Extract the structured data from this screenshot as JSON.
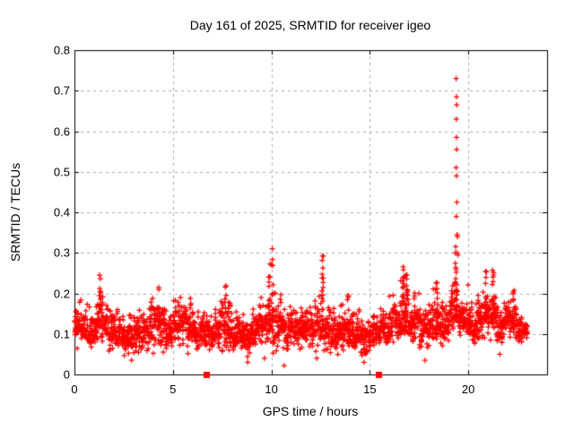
{
  "chart_data": {
    "type": "scatter",
    "title": "Day 161 of 2025, SRMTID for receiver igeo",
    "xlabel": "GPS time / hours",
    "ylabel": "SRMTID / TECUs",
    "xlim": [
      0,
      24
    ],
    "ylim": [
      0,
      0.8
    ],
    "x_tick_values": [
      0,
      5,
      10,
      15,
      20
    ],
    "x_tick_labels": [
      "0",
      "5",
      "10",
      "15",
      "20"
    ],
    "y_tick_values": [
      0,
      0.1,
      0.2,
      0.3,
      0.4,
      0.5,
      0.6,
      0.7,
      0.8
    ],
    "y_tick_labels": [
      "0",
      "0.1",
      "0.2",
      "0.3",
      "0.4",
      "0.5",
      "0.6",
      "0.7",
      "0.8"
    ],
    "grid": true,
    "legend": "none",
    "marker": {
      "shape": "plus",
      "size": 6,
      "color": "#ff0000"
    },
    "colors": {
      "points": "#ff0000",
      "grid": "#a9a9a9",
      "axis": "#000000",
      "text": "#000000",
      "background": "#ffffff"
    },
    "x_data_end": 23.05,
    "bin_width": 0.5,
    "points_per_bin": 56,
    "seed": 161,
    "band_bins": [
      [
        0.0,
        0.06,
        0.19,
        0.12
      ],
      [
        0.5,
        0.04,
        0.18,
        0.1
      ],
      [
        1.0,
        0.06,
        0.23,
        0.13
      ],
      [
        1.5,
        0.05,
        0.21,
        0.12
      ],
      [
        2.0,
        0.05,
        0.18,
        0.1
      ],
      [
        2.5,
        0.035,
        0.16,
        0.09
      ],
      [
        3.0,
        0.05,
        0.18,
        0.1
      ],
      [
        3.5,
        0.04,
        0.19,
        0.11
      ],
      [
        4.0,
        0.05,
        0.21,
        0.12
      ],
      [
        4.5,
        0.05,
        0.18,
        0.1
      ],
      [
        5.0,
        0.06,
        0.2,
        0.12
      ],
      [
        5.5,
        0.05,
        0.2,
        0.12
      ],
      [
        6.0,
        0.04,
        0.18,
        0.1
      ],
      [
        6.5,
        0.05,
        0.17,
        0.1
      ],
      [
        7.0,
        0.05,
        0.19,
        0.11
      ],
      [
        7.5,
        0.04,
        0.21,
        0.11
      ],
      [
        8.0,
        0.05,
        0.18,
        0.1
      ],
      [
        8.5,
        0.03,
        0.17,
        0.09
      ],
      [
        9.0,
        0.05,
        0.19,
        0.11
      ],
      [
        9.5,
        0.05,
        0.22,
        0.12
      ],
      [
        10.0,
        0.04,
        0.22,
        0.12
      ],
      [
        10.5,
        0.04,
        0.18,
        0.1
      ],
      [
        11.0,
        0.05,
        0.19,
        0.11
      ],
      [
        11.5,
        0.06,
        0.21,
        0.12
      ],
      [
        12.0,
        0.05,
        0.22,
        0.12
      ],
      [
        12.5,
        0.05,
        0.23,
        0.12
      ],
      [
        13.0,
        0.04,
        0.18,
        0.1
      ],
      [
        13.5,
        0.05,
        0.19,
        0.11
      ],
      [
        14.0,
        0.04,
        0.18,
        0.1
      ],
      [
        14.5,
        0.035,
        0.16,
        0.09
      ],
      [
        15.0,
        0.05,
        0.18,
        0.1
      ],
      [
        15.5,
        0.05,
        0.19,
        0.11
      ],
      [
        16.0,
        0.06,
        0.21,
        0.12
      ],
      [
        16.5,
        0.07,
        0.24,
        0.14
      ],
      [
        17.0,
        0.06,
        0.22,
        0.13
      ],
      [
        17.5,
        0.04,
        0.2,
        0.11
      ],
      [
        18.0,
        0.06,
        0.22,
        0.12
      ],
      [
        18.5,
        0.06,
        0.2,
        0.11
      ],
      [
        19.0,
        0.08,
        0.26,
        0.15
      ],
      [
        19.5,
        0.07,
        0.23,
        0.13
      ],
      [
        20.0,
        0.06,
        0.2,
        0.11
      ],
      [
        20.5,
        0.08,
        0.25,
        0.14
      ],
      [
        21.0,
        0.08,
        0.25,
        0.14
      ],
      [
        21.5,
        0.06,
        0.2,
        0.12
      ],
      [
        22.0,
        0.08,
        0.2,
        0.13
      ],
      [
        22.5,
        0.07,
        0.16,
        0.11
      ]
    ],
    "bursts": [
      [
        1.3,
        0.25,
        8
      ],
      [
        4.3,
        0.22,
        6
      ],
      [
        7.7,
        0.22,
        6
      ],
      [
        9.9,
        0.285,
        10
      ],
      [
        10.05,
        0.32,
        8
      ],
      [
        12.6,
        0.3,
        12
      ],
      [
        13.9,
        0.2,
        5
      ],
      [
        16.7,
        0.27,
        14
      ],
      [
        16.85,
        0.25,
        10
      ],
      [
        18.4,
        0.23,
        8
      ],
      [
        19.35,
        0.3,
        12
      ],
      [
        20.9,
        0.27,
        10
      ],
      [
        21.25,
        0.26,
        8
      ],
      [
        22.3,
        0.21,
        6
      ]
    ],
    "spike_points": [
      [
        19.38,
        0.73
      ],
      [
        19.4,
        0.685
      ],
      [
        19.41,
        0.665
      ],
      [
        19.39,
        0.63
      ],
      [
        19.4,
        0.585
      ],
      [
        19.41,
        0.555
      ],
      [
        19.38,
        0.51
      ],
      [
        19.4,
        0.49
      ],
      [
        19.42,
        0.425
      ],
      [
        19.39,
        0.39
      ],
      [
        19.43,
        0.345
      ],
      [
        19.45,
        0.34
      ],
      [
        19.36,
        0.315
      ],
      [
        19.44,
        0.3
      ],
      [
        19.47,
        0.295
      ],
      [
        19.33,
        0.3
      ]
    ],
    "low_outliers": [
      [
        10.65,
        0.022
      ],
      [
        9.65,
        0.04
      ],
      [
        2.9,
        0.035
      ],
      [
        8.8,
        0.03
      ],
      [
        14.7,
        0.03
      ],
      [
        17.8,
        0.035
      ],
      [
        12.3,
        0.04
      ],
      [
        21.6,
        0.05
      ]
    ],
    "axis_marker_squares": {
      "color": "#ff0000",
      "size": 7,
      "y": 0,
      "x": [
        6.74,
        15.44
      ]
    }
  }
}
